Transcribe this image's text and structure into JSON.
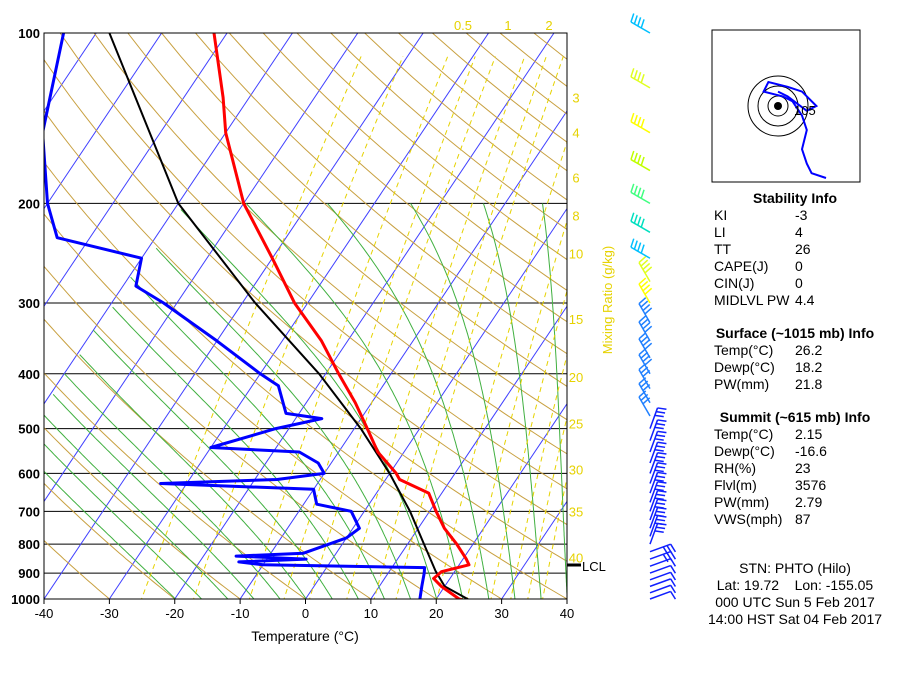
{
  "chart_data": {
    "type": "skew-t log-p sounding",
    "title": "",
    "xlabel": "Temperature (°C)",
    "ylabel": "",
    "x_range": [
      -40,
      40
    ],
    "x_ticks": [
      -40,
      -30,
      -20,
      -10,
      0,
      10,
      20,
      30,
      40
    ],
    "y_range_mb": [
      1000,
      100
    ],
    "y_ticks": [
      1000,
      900,
      800,
      700,
      600,
      500,
      400,
      300,
      200,
      100
    ],
    "skew_deg_per_log10p": 58,
    "mixing_ratio_label": "Mixing Ratio (g/kg)",
    "mixing_ratio_top": [
      "0.5",
      "1",
      "2"
    ],
    "mixing_ratio_side": [
      "3",
      "4",
      "6",
      "8",
      "10",
      "15",
      "20",
      "25",
      "30",
      "35",
      "40"
    ],
    "lcl_label": "LCL",
    "lcl_pressure": 892,
    "colors": {
      "temperature": "#ff0000",
      "dewpoint": "#0000ff",
      "parcel": "#000000",
      "isotherm": "#4040ff",
      "dry_adiabat": "#c8a040",
      "moist_adiabat": "#40b040",
      "mixing_ratio": "#e6d200"
    },
    "temperature_profile": [
      {
        "p": 1015,
        "t": 26.2
      },
      {
        "p": 1000,
        "t": 23.5
      },
      {
        "p": 950,
        "t": 19.5
      },
      {
        "p": 920,
        "t": 17.5
      },
      {
        "p": 895,
        "t": 18.0
      },
      {
        "p": 870,
        "t": 21.5
      },
      {
        "p": 850,
        "t": 20.5
      },
      {
        "p": 800,
        "t": 17.5
      },
      {
        "p": 750,
        "t": 14.0
      },
      {
        "p": 700,
        "t": 11.0
      },
      {
        "p": 650,
        "t": 8.0
      },
      {
        "p": 615,
        "t": 2.15
      },
      {
        "p": 600,
        "t": 1.0
      },
      {
        "p": 550,
        "t": -4.0
      },
      {
        "p": 500,
        "t": -8.0
      },
      {
        "p": 450,
        "t": -12.5
      },
      {
        "p": 400,
        "t": -18.0
      },
      {
        "p": 350,
        "t": -24.0
      },
      {
        "p": 300,
        "t": -32.0
      },
      {
        "p": 250,
        "t": -40.0
      },
      {
        "p": 200,
        "t": -50.0
      },
      {
        "p": 150,
        "t": -60.0
      },
      {
        "p": 130,
        "t": -64.0
      },
      {
        "p": 100,
        "t": -72.0
      }
    ],
    "dewpoint_profile": [
      {
        "p": 1015,
        "t": 18.2
      },
      {
        "p": 1000,
        "t": 17.5
      },
      {
        "p": 950,
        "t": 16.5
      },
      {
        "p": 900,
        "t": 15.5
      },
      {
        "p": 880,
        "t": 15.0
      },
      {
        "p": 870,
        "t": -10.0
      },
      {
        "p": 860,
        "t": -14.0
      },
      {
        "p": 850,
        "t": -4.0
      },
      {
        "p": 840,
        "t": -15.0
      },
      {
        "p": 830,
        "t": -5.0
      },
      {
        "p": 780,
        "t": 0.0
      },
      {
        "p": 750,
        "t": 1.0
      },
      {
        "p": 700,
        "t": -2.0
      },
      {
        "p": 680,
        "t": -8.0
      },
      {
        "p": 640,
        "t": -10.0
      },
      {
        "p": 625,
        "t": -34.0
      },
      {
        "p": 615,
        "t": -16.6
      },
      {
        "p": 600,
        "t": -10.0
      },
      {
        "p": 575,
        "t": -12.0
      },
      {
        "p": 550,
        "t": -16.0
      },
      {
        "p": 540,
        "t": -30.0
      },
      {
        "p": 500,
        "t": -22.0
      },
      {
        "p": 480,
        "t": -16.0
      },
      {
        "p": 470,
        "t": -22.0
      },
      {
        "p": 420,
        "t": -26.0
      },
      {
        "p": 400,
        "t": -30.0
      },
      {
        "p": 350,
        "t": -40.0
      },
      {
        "p": 300,
        "t": -52.0
      },
      {
        "p": 280,
        "t": -58.0
      },
      {
        "p": 250,
        "t": -60.0
      },
      {
        "p": 230,
        "t": -75.0
      },
      {
        "p": 200,
        "t": -80.0
      },
      {
        "p": 150,
        "t": -88.0
      },
      {
        "p": 100,
        "t": -95.0
      }
    ],
    "parcel_profile": [
      {
        "p": 1015,
        "t": 26.2
      },
      {
        "p": 950,
        "t": 20.0
      },
      {
        "p": 892,
        "t": 17.0
      },
      {
        "p": 800,
        "t": 12.5
      },
      {
        "p": 700,
        "t": 7.0
      },
      {
        "p": 600,
        "t": 0.0
      },
      {
        "p": 500,
        "t": -9.0
      },
      {
        "p": 400,
        "t": -21.0
      },
      {
        "p": 300,
        "t": -38.0
      },
      {
        "p": 200,
        "t": -60.0
      },
      {
        "p": 100,
        "t": -88.0
      }
    ],
    "wind_barb_pressures": [
      1000,
      975,
      950,
      925,
      900,
      875,
      850,
      825,
      800,
      775,
      750,
      725,
      700,
      675,
      650,
      625,
      600,
      575,
      550,
      525,
      500,
      475,
      450,
      425,
      400,
      375,
      350,
      325,
      300,
      275,
      250,
      225,
      200,
      175,
      150,
      125,
      100
    ],
    "hodograph": {
      "label": "105",
      "ring_radii_kt": [
        20,
        40,
        60
      ],
      "points_uv": [
        [
          20,
          -30
        ],
        [
          14,
          -28
        ],
        [
          12,
          -24
        ],
        [
          10,
          -18
        ],
        [
          12,
          -10
        ],
        [
          10,
          -4
        ],
        [
          6,
          2
        ],
        [
          2,
          4
        ],
        [
          -6,
          6
        ],
        [
          -4,
          10
        ],
        [
          4,
          8
        ],
        [
          10,
          6
        ],
        [
          16,
          0
        ],
        [
          12,
          -2
        ],
        [
          4,
          4
        ],
        [
          0,
          6
        ]
      ]
    }
  },
  "stability": {
    "title": "Stability Info",
    "rows": [
      {
        "label": "KI",
        "value": "-3"
      },
      {
        "label": "LI",
        "value": "4"
      },
      {
        "label": "TT",
        "value": "26"
      },
      {
        "label": "CAPE(J)",
        "value": "0"
      },
      {
        "label": "CIN(J)",
        "value": "0"
      },
      {
        "label": "MIDLVL PW",
        "value": "4.4"
      }
    ]
  },
  "surface": {
    "title": "Surface (~1015 mb) Info",
    "rows": [
      {
        "label": "Temp(°C)",
        "value": "26.2"
      },
      {
        "label": "Dewp(°C)",
        "value": "18.2"
      },
      {
        "label": "PW(mm)",
        "value": "21.8"
      }
    ]
  },
  "summit": {
    "title": "Summit (~615 mb) Info",
    "rows": [
      {
        "label": "Temp(°C)",
        "value": "2.15"
      },
      {
        "label": "Dewp(°C)",
        "value": "-16.6"
      },
      {
        "label": "RH(%)",
        "value": "23"
      },
      {
        "label": "Flvl(m)",
        "value": "3576"
      },
      {
        "label": "PW(mm)",
        "value": "2.79"
      },
      {
        "label": "VWS(mph)",
        "value": "87"
      }
    ]
  },
  "station": {
    "name": "STN: PHTO (Hilo)",
    "latlon": "Lat: 19.72    Lon: -155.05",
    "utc": "000 UTC Sun 5 Feb 2017",
    "hst": "14:00 HST Sat 04 Feb 2017"
  }
}
